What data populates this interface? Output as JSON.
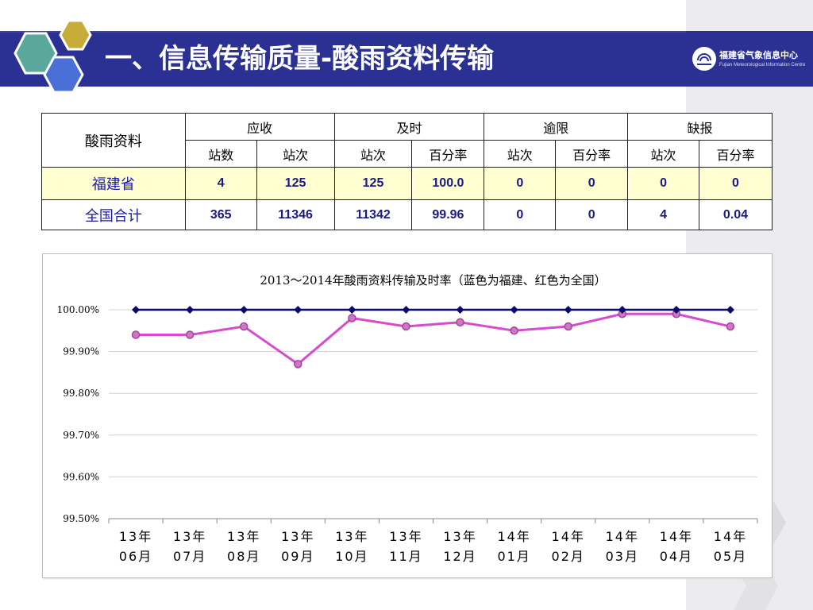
{
  "slide": {
    "title": "一、信息传输质量-酸雨资料传输",
    "logo_text": "福建省气象信息中心",
    "logo_subtitle": "Fujian Meteorological Information Centre"
  },
  "table": {
    "corner_label": "酸雨资料",
    "group_headers": [
      "应收",
      "及时",
      "逾限",
      "缺报"
    ],
    "sub_headers": [
      "站数",
      "站次",
      "站次",
      "百分率",
      "站次",
      "百分率",
      "站次",
      "百分率"
    ],
    "rows": [
      {
        "label": "福建省",
        "values": [
          "4",
          "125",
          "125",
          "100.0",
          "0",
          "0",
          "0",
          "0"
        ]
      },
      {
        "label": "全国合计",
        "values": [
          "365",
          "11346",
          "11342",
          "99.96",
          "0",
          "0",
          "4",
          "0.04"
        ]
      }
    ]
  },
  "chart_data": {
    "type": "line",
    "title": "2013～2014年酸雨资料传输及时率（蓝色为福建、红色为全国）",
    "x": [
      "13年\n06月",
      "13年\n07月",
      "13年\n08月",
      "13年\n09月",
      "13年\n10月",
      "13年\n11月",
      "13年\n12月",
      "14年\n01月",
      "14年\n02月",
      "14年\n03月",
      "14年\n04月",
      "14年\n05月"
    ],
    "y_ticks": [
      "100.00%",
      "99.90%",
      "99.80%",
      "99.70%",
      "99.60%",
      "99.50%"
    ],
    "ylim": [
      99.5,
      100.0
    ],
    "grid": true,
    "series": [
      {
        "color": "#0a0a6e",
        "marker": "diamond",
        "values": [
          100,
          100,
          100,
          100,
          100,
          100,
          100,
          100,
          100,
          100,
          100,
          100
        ]
      },
      {
        "color": "#d84ad0",
        "marker": "circle",
        "values": [
          99.94,
          99.94,
          99.96,
          99.87,
          99.98,
          99.96,
          99.97,
          99.95,
          99.96,
          99.99,
          99.99,
          99.96
        ]
      }
    ]
  },
  "colors": {
    "title_bar": "#2b3192",
    "hex_teal": "#5aa79c",
    "hex_gold": "#c8ac38",
    "hex_blue": "#4a6fd6",
    "row_highlight": "#fffed0"
  }
}
